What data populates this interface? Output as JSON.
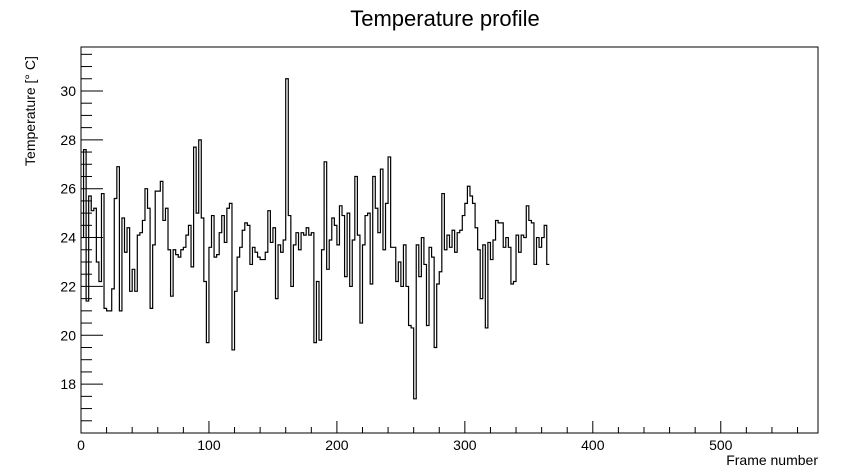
{
  "chart_data": {
    "type": "line",
    "title": "Temperature profile",
    "xlabel": "Frame number",
    "ylabel": "Temperature [° C]",
    "xlim": [
      0,
      576
    ],
    "ylim": [
      16,
      31.8
    ],
    "x_ticks": [
      0,
      100,
      200,
      300,
      400,
      500
    ],
    "y_ticks": [
      18,
      20,
      22,
      24,
      26,
      28,
      30
    ],
    "grid": false,
    "step": 2,
    "series": [
      {
        "values": [
          24.0,
          27.6,
          21.4,
          25.7,
          25.1,
          25.2,
          23.0,
          22.2,
          25.8,
          21.1,
          21.0,
          21.0,
          21.9,
          25.6,
          26.9,
          21.0,
          24.8,
          23.4,
          24.4,
          21.8,
          22.7,
          21.8,
          24.1,
          24.2,
          24.7,
          26.0,
          25.2,
          21.1,
          23.7,
          25.9,
          25.9,
          26.3,
          24.7,
          25.2,
          23.5,
          21.6,
          23.5,
          23.3,
          23.2,
          23.5,
          23.6,
          24.1,
          24.5,
          22.8,
          27.7,
          25.0,
          28.0,
          24.8,
          22.2,
          19.7,
          23.6,
          24.9,
          23.2,
          23.3,
          24.2,
          24.9,
          23.8,
          25.2,
          25.4,
          19.4,
          21.8,
          23.2,
          23.6,
          24.3,
          24.6,
          24.5,
          22.9,
          23.6,
          23.4,
          23.2,
          23.1,
          23.1,
          23.4,
          25.1,
          23.8,
          24.4,
          21.5,
          23.7,
          23.4,
          23.9,
          30.5,
          24.9,
          22.0,
          23.7,
          24.2,
          23.5,
          24.2,
          24.1,
          24.4,
          24.1,
          24.2,
          19.7,
          22.2,
          19.8,
          23.5,
          27.1,
          22.7,
          23.9,
          24.8,
          24.5,
          23.7,
          25.3,
          24.9,
          22.4,
          25.0,
          22.0,
          23.9,
          26.5,
          24.1,
          20.5,
          23.7,
          24.9,
          25.0,
          22.1,
          26.5,
          25.2,
          24.2,
          26.8,
          23.5,
          25.4,
          27.3,
          23.6,
          23.6,
          22.2,
          23.0,
          22.0,
          23.7,
          22.0,
          20.4,
          20.3,
          17.4,
          23.7,
          22.4,
          24.0,
          22.9,
          20.4,
          23.6,
          23.2,
          19.5,
          22.1,
          22.6,
          25.8,
          23.5,
          24.1,
          23.6,
          24.3,
          23.4,
          24.2,
          24.3,
          24.9,
          25.4,
          26.1,
          25.7,
          25.4,
          24.4,
          23.5,
          21.5,
          23.7,
          20.3,
          23.8,
          23.1,
          23.9,
          24.7,
          24.6,
          24.6,
          23.6,
          24.0,
          23.6,
          22.1,
          22.2,
          24.1,
          23.4,
          24.1,
          24.0,
          25.3,
          24.7,
          24.6,
          22.9,
          24.0,
          23.6,
          24.0,
          24.5,
          22.9
        ]
      }
    ]
  }
}
